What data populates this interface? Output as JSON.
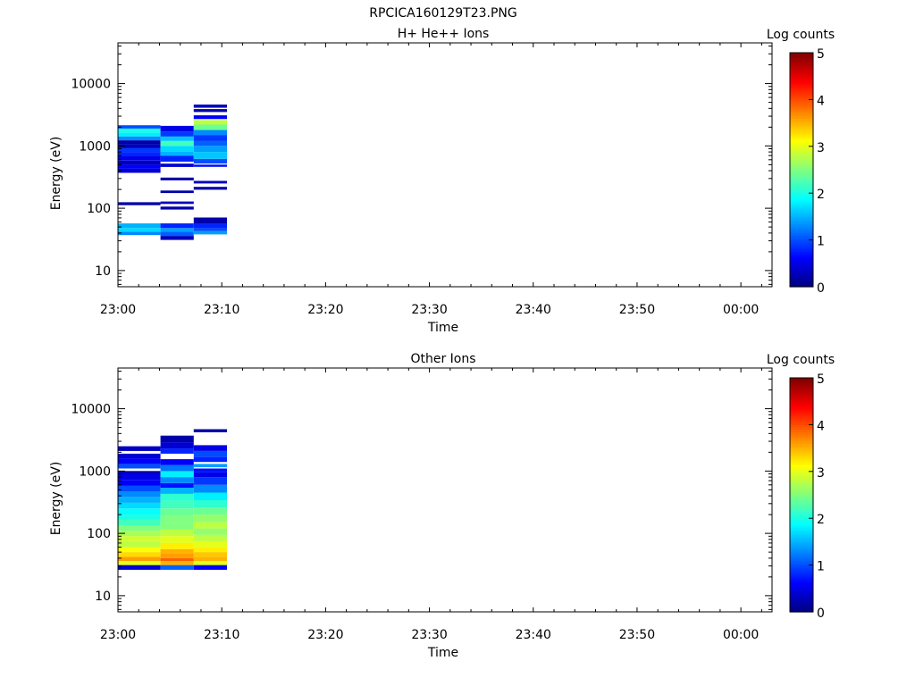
{
  "figure_title": "RPCICA160129T23.PNG",
  "chart_data": [
    {
      "type": "heatmap",
      "title": "H+ He++ Ions",
      "xlabel": "Time",
      "ylabel": "Energy (eV)",
      "xticks": [
        "23:00",
        "23:10",
        "23:20",
        "23:30",
        "23:40",
        "23:50",
        "00:00"
      ],
      "xlim_minutes": [
        0,
        63
      ],
      "yscale": "log",
      "yticks": [
        10,
        100,
        1000,
        10000
      ],
      "ytick_labels": [
        "10",
        "100",
        "1000",
        "10000"
      ],
      "ylim": [
        5.5,
        45000
      ],
      "colorbar": {
        "label": "Log counts",
        "min": 0,
        "max": 5,
        "ticks": [
          "0",
          "1",
          "2",
          "3",
          "4",
          "5"
        ]
      },
      "columns": [
        {
          "t_start": 0.0,
          "t_end": 4.1,
          "cells": [
            [
              37,
              42,
              1.3
            ],
            [
              42,
              48,
              1.7
            ],
            [
              48,
              57,
              1.5
            ],
            [
              112,
              125,
              0.2
            ],
            [
              370,
              430,
              0.4
            ],
            [
              430,
              500,
              0.6
            ],
            [
              500,
              580,
              0.3
            ],
            [
              580,
              680,
              0.5
            ],
            [
              680,
              800,
              0.8
            ],
            [
              800,
              930,
              0.9
            ],
            [
              930,
              1060,
              0.3
            ],
            [
              1060,
              1230,
              0.2
            ],
            [
              1230,
              1420,
              1.3
            ],
            [
              1420,
              1650,
              1.8
            ],
            [
              1650,
              1900,
              2.0
            ],
            [
              1900,
              2150,
              1.0
            ]
          ]
        },
        {
          "t_start": 4.1,
          "t_end": 7.3,
          "cells": [
            [
              31,
              36,
              0.3
            ],
            [
              36,
              42,
              1.1
            ],
            [
              42,
              48,
              1.4
            ],
            [
              48,
              57,
              0.8
            ],
            [
              95,
              106,
              0.2
            ],
            [
              117,
              128,
              0.3
            ],
            [
              175,
              192,
              0.2
            ],
            [
              280,
              310,
              0.2
            ],
            [
              460,
              520,
              0.4
            ],
            [
              560,
              700,
              0.8
            ],
            [
              700,
              820,
              1.5
            ],
            [
              820,
              1000,
              1.7
            ],
            [
              1000,
              1200,
              2.2
            ],
            [
              1200,
              1420,
              1.6
            ],
            [
              1420,
              1700,
              0.9
            ],
            [
              1700,
              2100,
              0.5
            ]
          ]
        },
        {
          "t_start": 7.3,
          "t_end": 10.5,
          "cells": [
            [
              38,
              43,
              1.4
            ],
            [
              43,
              48,
              1.0
            ],
            [
              48,
              56,
              0.8
            ],
            [
              56,
              71,
              0.2
            ],
            [
              198,
              220,
              0.2
            ],
            [
              250,
              275,
              0.3
            ],
            [
              460,
              500,
              0.7
            ],
            [
              520,
              620,
              1.0
            ],
            [
              620,
              800,
              1.6
            ],
            [
              800,
              1000,
              1.4
            ],
            [
              1000,
              1200,
              1.1
            ],
            [
              1200,
              1500,
              0.9
            ],
            [
              1500,
              1800,
              1.3
            ],
            [
              1800,
              2200,
              2.4
            ],
            [
              2200,
              2600,
              2.8
            ],
            [
              2700,
              3100,
              0.6
            ],
            [
              3500,
              3900,
              0.2
            ],
            [
              4100,
              4600,
              0.3
            ]
          ]
        }
      ]
    },
    {
      "type": "heatmap",
      "title": "Other Ions",
      "xlabel": "Time",
      "ylabel": "Energy (eV)",
      "xticks": [
        "23:00",
        "23:10",
        "23:20",
        "23:30",
        "23:40",
        "23:50",
        "00:00"
      ],
      "xlim_minutes": [
        0,
        63
      ],
      "yscale": "log",
      "yticks": [
        10,
        100,
        1000,
        10000
      ],
      "ytick_labels": [
        "10",
        "100",
        "1000",
        "10000"
      ],
      "ylim": [
        5.5,
        45000
      ],
      "colorbar": {
        "label": "Log counts",
        "min": 0,
        "max": 5,
        "ticks": [
          "0",
          "1",
          "2",
          "3",
          "4",
          "5"
        ]
      },
      "columns": [
        {
          "t_start": 0.0,
          "t_end": 4.1,
          "cells": [
            [
              26,
              31,
              0.4
            ],
            [
              31,
              36,
              3.0
            ],
            [
              36,
              42,
              3.6
            ],
            [
              42,
              50,
              3.3
            ],
            [
              50,
              60,
              3.1
            ],
            [
              60,
              75,
              2.8
            ],
            [
              75,
              90,
              2.9
            ],
            [
              90,
              110,
              2.7
            ],
            [
              110,
              135,
              2.5
            ],
            [
              135,
              165,
              2.2
            ],
            [
              165,
              200,
              2.0
            ],
            [
              200,
              250,
              1.9
            ],
            [
              250,
              310,
              1.7
            ],
            [
              310,
              380,
              1.5
            ],
            [
              380,
              470,
              1.3
            ],
            [
              470,
              580,
              1.0
            ],
            [
              580,
              720,
              0.6
            ],
            [
              720,
              900,
              0.5
            ],
            [
              900,
              1000,
              0.3
            ],
            [
              1100,
              1300,
              1.0
            ],
            [
              1300,
              1600,
              0.6
            ],
            [
              1600,
              1900,
              0.4
            ],
            [
              2100,
              2500,
              0.3
            ]
          ]
        },
        {
          "t_start": 4.1,
          "t_end": 7.3,
          "cells": [
            [
              26,
              31,
              1.1
            ],
            [
              31,
              36,
              3.5
            ],
            [
              36,
              40,
              3.9
            ],
            [
              40,
              47,
              3.6
            ],
            [
              47,
              56,
              3.5
            ],
            [
              56,
              70,
              3.2
            ],
            [
              70,
              90,
              3.0
            ],
            [
              90,
              115,
              2.8
            ],
            [
              115,
              145,
              2.5
            ],
            [
              145,
              190,
              2.5
            ],
            [
              190,
              250,
              2.4
            ],
            [
              250,
              330,
              2.2
            ],
            [
              330,
              430,
              2.1
            ],
            [
              430,
              540,
              1.5
            ],
            [
              540,
              640,
              0.7
            ],
            [
              640,
              800,
              1.3
            ],
            [
              800,
              1000,
              1.8
            ],
            [
              1000,
              1250,
              1.2
            ],
            [
              1250,
              1550,
              0.6
            ],
            [
              1900,
              2300,
              0.8
            ],
            [
              2300,
              2900,
              0.4
            ],
            [
              2900,
              3700,
              0.2
            ]
          ]
        },
        {
          "t_start": 7.3,
          "t_end": 10.5,
          "cells": [
            [
              26,
              31,
              0.6
            ],
            [
              31,
              36,
              3.0
            ],
            [
              36,
              42,
              3.5
            ],
            [
              42,
              50,
              3.4
            ],
            [
              50,
              60,
              3.2
            ],
            [
              60,
              75,
              3.0
            ],
            [
              75,
              95,
              2.8
            ],
            [
              95,
              120,
              2.6
            ],
            [
              120,
              150,
              2.8
            ],
            [
              150,
              200,
              2.6
            ],
            [
              200,
              260,
              2.4
            ],
            [
              260,
              340,
              2.1
            ],
            [
              340,
              450,
              1.8
            ],
            [
              450,
              600,
              1.3
            ],
            [
              600,
              800,
              0.9
            ],
            [
              800,
              950,
              0.5
            ],
            [
              950,
              1100,
              0.7
            ],
            [
              1150,
              1300,
              1.4
            ],
            [
              1400,
              1700,
              0.8
            ],
            [
              1700,
              2100,
              1.0
            ],
            [
              2100,
              2600,
              0.5
            ],
            [
              4200,
              4700,
              0.2
            ]
          ]
        }
      ]
    }
  ]
}
